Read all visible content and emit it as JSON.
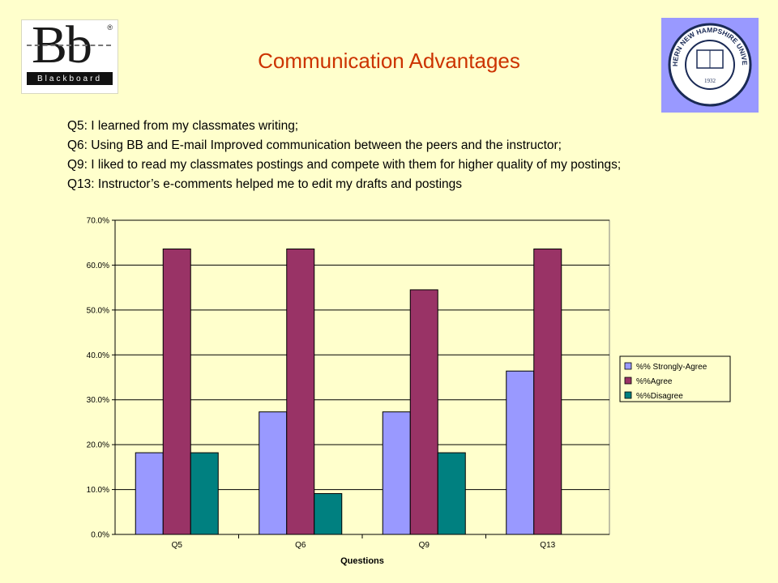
{
  "header": {
    "title": "Communication Advantages",
    "bb_logo": {
      "letters": "Bb",
      "wordmark": "Blackboard",
      "reg": "®"
    },
    "university_seal_text": "SOUTHERN NEW HAMPSHIRE UNIVERSITY",
    "university_seal_year": "1932",
    "seal_color": "#9999FF"
  },
  "questions": [
    "Q5: I learned from my classmates writing;",
    "Q6: Using BB and E-mail Improved communication between the peers and the instructor;",
    "Q9: I liked to read my classmates postings and compete with them for higher quality of my postings;",
    "Q13: Instructor’s e-comments helped me to edit my drafts and postings"
  ],
  "colors": {
    "background": "#FFFFCC",
    "title": "#CC3300",
    "strongly_agree": "#9999FF",
    "agree": "#993366",
    "disagree": "#008080"
  },
  "chart_data": {
    "type": "bar",
    "categories": [
      "Q5",
      "Q6",
      "Q9",
      "Q13"
    ],
    "series": [
      {
        "name": "%% Strongly-Agree",
        "values": [
          18.2,
          27.3,
          27.3,
          36.4
        ],
        "color": "#9999FF"
      },
      {
        "name": "%%Agree",
        "values": [
          63.6,
          63.6,
          54.5,
          63.6
        ],
        "color": "#993366"
      },
      {
        "name": "%%Disagree",
        "values": [
          18.2,
          9.1,
          18.2,
          0
        ],
        "color": "#008080"
      }
    ],
    "yticks": [
      "0.0%",
      "10.0%",
      "20.0%",
      "30.0%",
      "40.0%",
      "50.0%",
      "60.0%",
      "70.0%"
    ],
    "ylim": [
      0,
      70
    ],
    "xlabel": "Questions",
    "ylabel": "",
    "title": "",
    "grid": true,
    "legend_position": "right"
  }
}
